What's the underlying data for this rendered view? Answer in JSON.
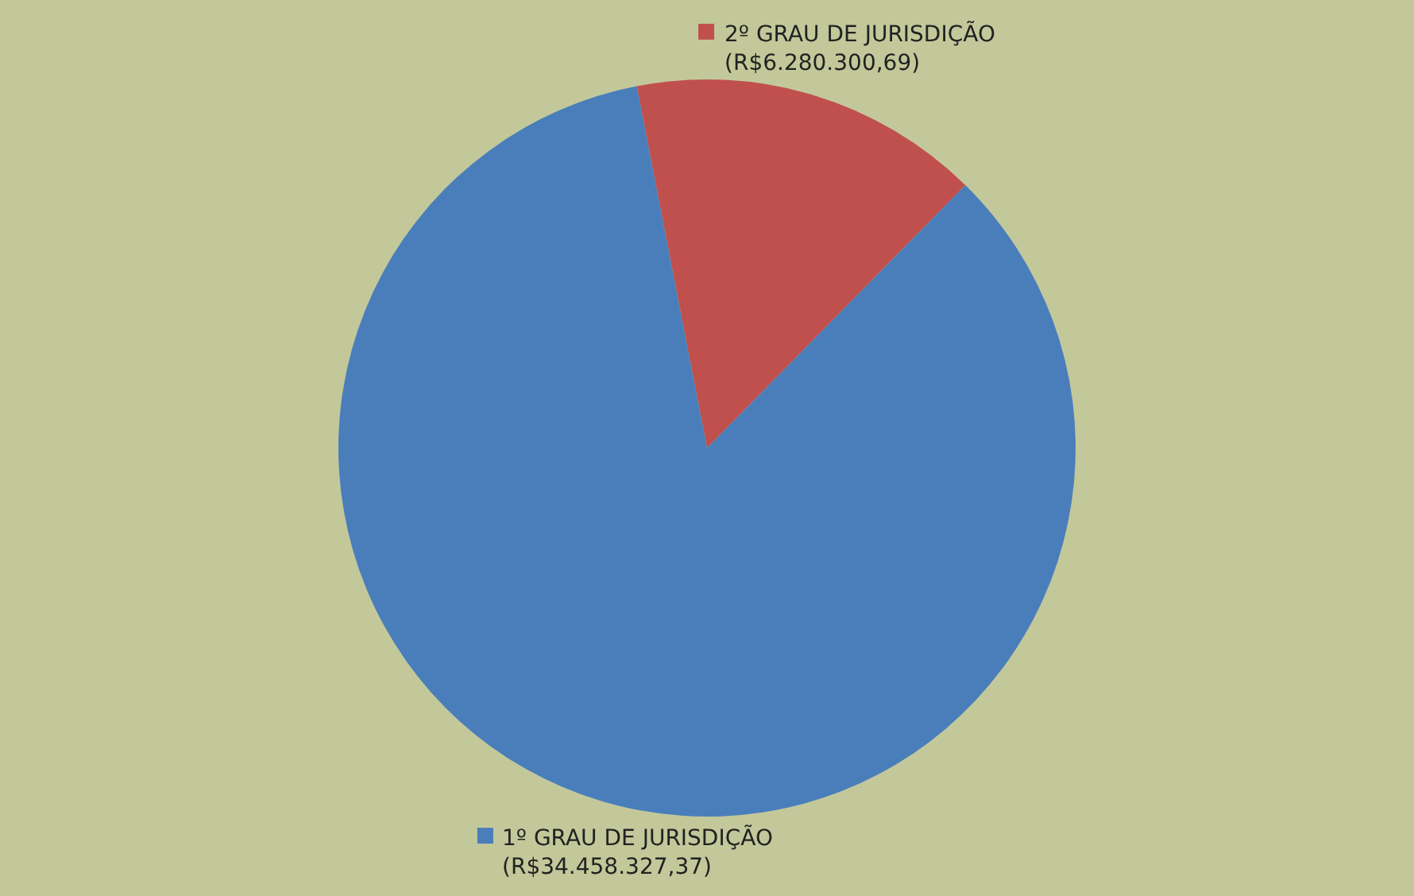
{
  "chart_data": {
    "type": "pie",
    "categories": [
      "2º GRAU DE JURISDIÇÃO",
      "1º GRAU DE JURISDIÇÃO"
    ],
    "values": [
      6280300.69,
      34458327.37
    ],
    "value_labels": [
      "(R$6.280.300,69)",
      "(R$34.458.327,37)"
    ],
    "colors": [
      "#c0504d",
      "#4a7ebb"
    ],
    "legend": "top"
  }
}
